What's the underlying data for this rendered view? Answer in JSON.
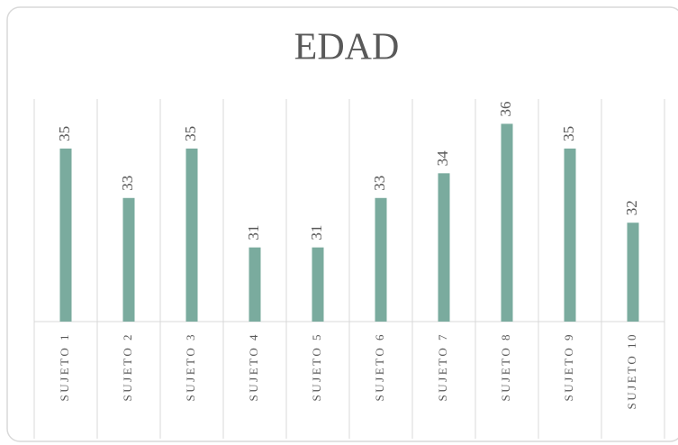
{
  "chart_data": {
    "type": "bar",
    "title": "EDAD",
    "categories": [
      "SUJETO 1",
      "SUJETO 2",
      "SUJETO 3",
      "SUJETO 4",
      "SUJETO 5",
      "SUJETO 6",
      "SUJETO 7",
      "SUJETO 8",
      "SUJETO 9",
      "SUJETO 10"
    ],
    "values": [
      35,
      33,
      35,
      31,
      31,
      33,
      34,
      36,
      35,
      32
    ],
    "color": "#7aab9e",
    "ylim": [
      28,
      37
    ]
  }
}
